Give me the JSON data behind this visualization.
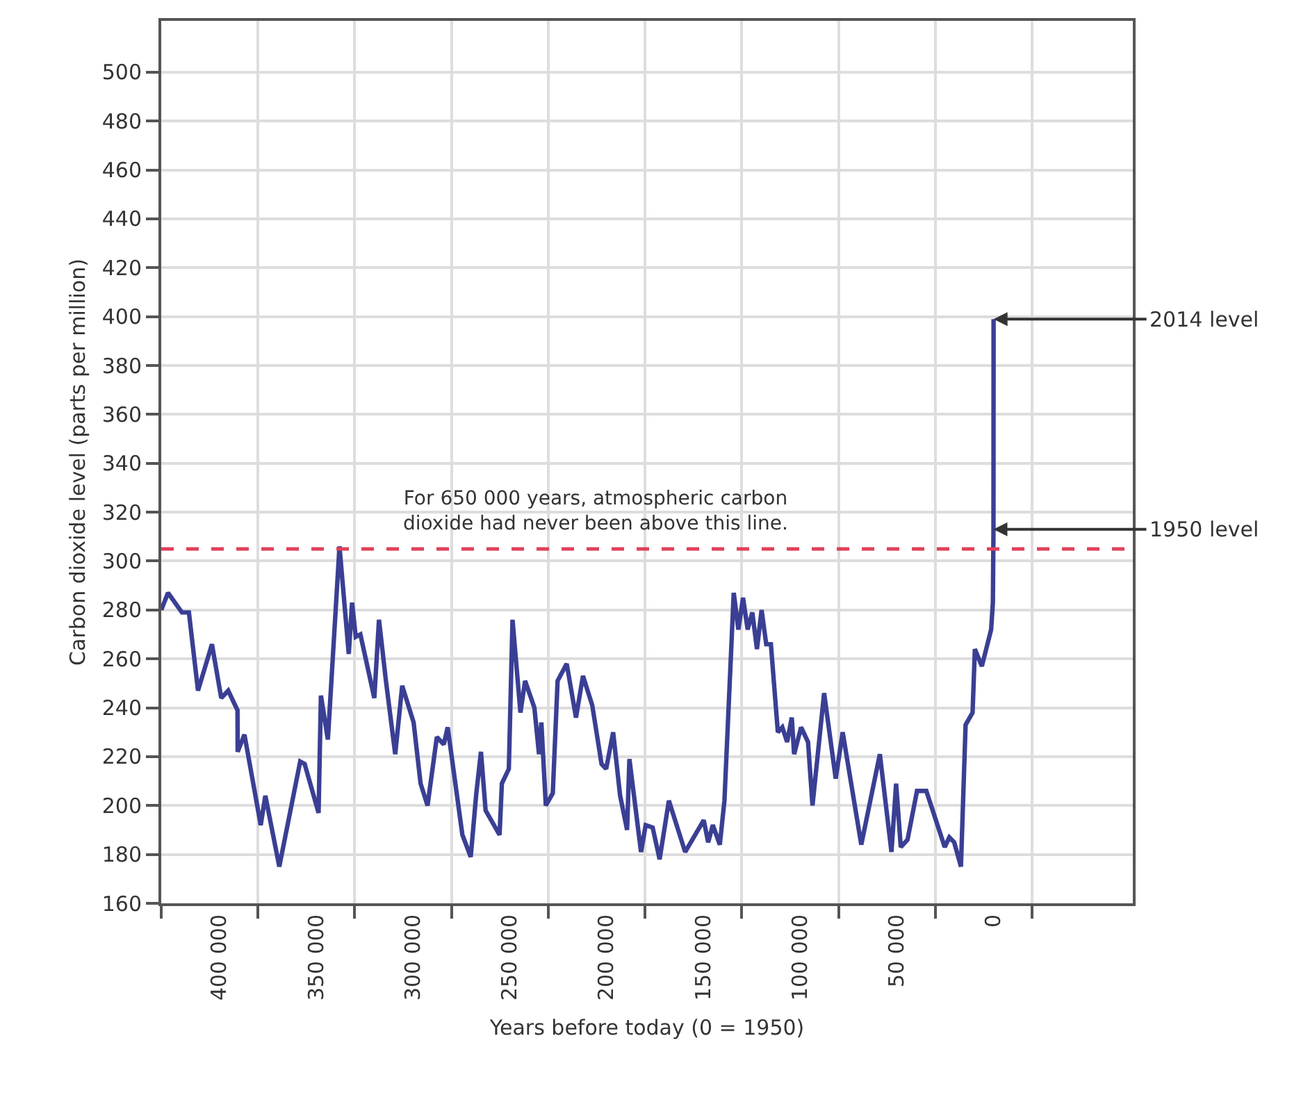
{
  "chart_data": {
    "type": "line",
    "xlabel": "Years before today (0 = 1950)",
    "ylabel": "Carbon dioxide level (parts per million)",
    "x": [
      430000,
      426500,
      419300,
      415700,
      411000,
      403800,
      399000,
      395400,
      390600,
      390500,
      387000,
      378600,
      376200,
      369000,
      358200,
      355900,
      348700,
      347500,
      343900,
      337900,
      333100,
      331400,
      329500,
      327100,
      319900,
      317500,
      313900,
      309100,
      305500,
      299600,
      296000,
      292400,
      287600,
      284000,
      282000,
      274400,
      270100,
      267200,
      264800,
      262400,
      255200,
      254000,
      250400,
      248500,
      244400,
      242000,
      237200,
      234800,
      233600,
      231300,
      227700,
      225200,
      220500,
      215700,
      212100,
      207300,
      202500,
      200100,
      196500,
      192900,
      189300,
      188100,
      182100,
      179700,
      176100,
      172500,
      167700,
      159300,
      149700,
      147400,
      145000,
      141400,
      139000,
      134200,
      131800,
      129400,
      127000,
      124600,
      122200,
      119800,
      117400,
      115000,
      111400,
      109100,
      106600,
      104200,
      103000,
      99400,
      95800,
      93500,
      87500,
      81500,
      77900,
      68300,
      58700,
      52700,
      50300,
      47900,
      44400,
      39500,
      34700,
      25200,
      22800,
      20300,
      16800,
      14400,
      10800,
      9600,
      6000,
      1200,
      300,
      0,
      -64
    ],
    "series": [
      {
        "color": "#3a3f94",
        "values": [
          280,
          287,
          279,
          279,
          247,
          266,
          244,
          247,
          239,
          222,
          229,
          192,
          204,
          175,
          218,
          217,
          197,
          245,
          227,
          306,
          262,
          283,
          269,
          270,
          244,
          276,
          251,
          221,
          249,
          234,
          209,
          200,
          228,
          225,
          232,
          188,
          179,
          205,
          222,
          198,
          188,
          209,
          215,
          276,
          238,
          251,
          240,
          221,
          234,
          200,
          205,
          251,
          258,
          236,
          253,
          241,
          217,
          215,
          230,
          204,
          190,
          219,
          181,
          192,
          191,
          178,
          202,
          181,
          194,
          185,
          192,
          184,
          202,
          287,
          272,
          285,
          272,
          279,
          264,
          280,
          266,
          266,
          230,
          232,
          226,
          236,
          221,
          232,
          226,
          200,
          246,
          211,
          230,
          184,
          221,
          181,
          209,
          183,
          186,
          206,
          206,
          183,
          187,
          185,
          175,
          233,
          238,
          264,
          257,
          272,
          283,
          313,
          399
        ]
      }
    ],
    "xlim": [
      430000,
      -72000
    ],
    "xticks": [
      {
        "value": 430000,
        "label": null
      },
      {
        "value": 400000,
        "label": "400 000"
      },
      {
        "value": 380000,
        "label": null
      },
      {
        "value": 350000,
        "label": "350 000"
      },
      {
        "value": 330000,
        "label": null
      },
      {
        "value": 300000,
        "label": "300 000"
      },
      {
        "value": 280000,
        "label": null
      },
      {
        "value": 250000,
        "label": "250 000"
      },
      {
        "value": 230000,
        "label": null
      },
      {
        "value": 200000,
        "label": "200 000"
      },
      {
        "value": 180000,
        "label": null
      },
      {
        "value": 150000,
        "label": "150 000"
      },
      {
        "value": 130000,
        "label": null
      },
      {
        "value": 100000,
        "label": "100 000"
      },
      {
        "value": 80000,
        "label": null
      },
      {
        "value": 50000,
        "label": "50 000"
      },
      {
        "value": 30000,
        "label": null
      },
      {
        "value": 0,
        "label": "0"
      },
      {
        "value": -20000,
        "label": null
      }
    ],
    "ylim": [
      160,
      521
    ],
    "yticks": [
      160,
      180,
      200,
      220,
      240,
      260,
      280,
      300,
      320,
      340,
      360,
      380,
      400,
      420,
      440,
      460,
      480,
      500
    ],
    "grid": true,
    "line_style": "solid",
    "marker": "none",
    "ref_lines": [
      {
        "axis": "y",
        "value": 305,
        "label": "For 650 000 years, atmospheric carbon\ndioxide had never been above this line.",
        "color": "#e0405a",
        "line_style": "dashed"
      }
    ],
    "annotations": [
      {
        "text": "2014 level",
        "x": -64,
        "y": 399
      },
      {
        "text": "1950 level",
        "x": 0,
        "y": 313
      }
    ]
  }
}
